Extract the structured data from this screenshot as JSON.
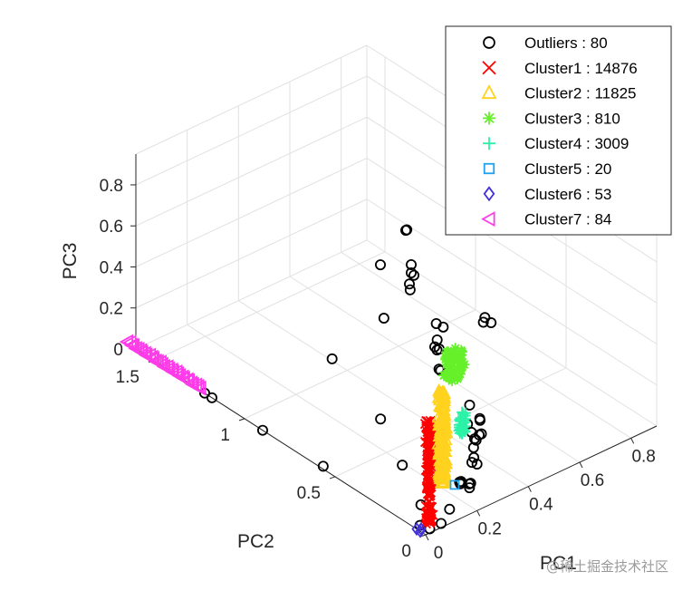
{
  "chart_data": {
    "type": "scatter3d",
    "xlabel": "PC1",
    "ylabel": "PC2",
    "zlabel": "PC3",
    "xlim": [
      0,
      0.9
    ],
    "ylim": [
      0,
      1.6
    ],
    "zlim": [
      0,
      0.95
    ],
    "x_ticks": [
      {
        "value": 0,
        "label": "0"
      },
      {
        "value": 0.2,
        "label": "0.2"
      },
      {
        "value": 0.4,
        "label": "0.4"
      },
      {
        "value": 0.6,
        "label": "0.6"
      },
      {
        "value": 0.8,
        "label": "0.8"
      }
    ],
    "y_ticks": [
      {
        "value": 0,
        "label": "0"
      },
      {
        "value": 0.5,
        "label": "0.5"
      },
      {
        "value": 1,
        "label": "1"
      },
      {
        "value": 1.5,
        "label": "1.5"
      }
    ],
    "z_ticks": [
      {
        "value": 0,
        "label": "0"
      },
      {
        "value": 0.2,
        "label": "0.2"
      },
      {
        "value": 0.4,
        "label": "0.4"
      },
      {
        "value": 0.6,
        "label": "0.6"
      },
      {
        "value": 0.8,
        "label": "0.8"
      }
    ],
    "grid": true,
    "legend_position": "top-right",
    "series": [
      {
        "name": "Outliers : 80",
        "marker": "circle",
        "color": "#000000",
        "points": [
          [
            0.03,
            0.02,
            0.0
          ],
          [
            0.06,
            0.0,
            0.02
          ],
          [
            0.1,
            0.01,
            0.06
          ],
          [
            0.08,
            0.14,
            0.02
          ],
          [
            0.16,
            0.04,
            0.14
          ],
          [
            0.17,
            0.05,
            0.12
          ],
          [
            0.18,
            0.06,
            0.12
          ],
          [
            0.19,
            0.08,
            0.1
          ],
          [
            0.22,
            0.07,
            0.06
          ],
          [
            0.24,
            0.1,
            0.05
          ],
          [
            0.26,
            0.12,
            0.03
          ],
          [
            0.3,
            0.17,
            0.08
          ],
          [
            0.32,
            0.17,
            0.06
          ],
          [
            0.35,
            0.23,
            0.04
          ],
          [
            0.37,
            0.26,
            0.06
          ],
          [
            0.38,
            0.26,
            0.09
          ],
          [
            0.39,
            0.3,
            0.1
          ],
          [
            0.42,
            0.3,
            0.07
          ],
          [
            0.45,
            0.33,
            0.04
          ],
          [
            0.48,
            0.38,
            0.06
          ],
          [
            0.5,
            0.41,
            0.04
          ],
          [
            0.51,
            0.48,
            0.06
          ],
          [
            0.6,
            0.8,
            0.11
          ],
          [
            0.63,
            0.83,
            0.06
          ],
          [
            0.66,
            0.86,
            0.03
          ],
          [
            0.68,
            0.9,
            0.04
          ],
          [
            0.66,
            1.0,
            0.31
          ],
          [
            0.71,
            1.11,
            0.44
          ],
          [
            0.72,
            1.13,
            0.42
          ],
          [
            0.72,
            1.1,
            0.27
          ],
          [
            0.72,
            1.1,
            0.23
          ],
          [
            0.72,
            1.11,
            0.17
          ],
          [
            0.73,
            1.12,
            0.13
          ],
          [
            0.55,
            1.01,
            0.16
          ],
          [
            0.6,
            1.1,
            0.34
          ],
          [
            0.32,
            0.97,
            0.12
          ],
          [
            0.29,
            0.66,
            0.02
          ],
          [
            0.17,
            0.37,
            0.03
          ],
          [
            0.0,
            0.9,
            0.0
          ],
          [
            0.0,
            1.18,
            0.0
          ],
          [
            0.0,
            1.22,
            0.0
          ],
          [
            0.01,
            0.58,
            0.0
          ],
          [
            0.02,
            0.06,
            0.0
          ],
          [
            0.76,
            0.98,
            0.01
          ],
          [
            0.86,
            0.9,
            0.02
          ],
          [
            0.88,
            0.92,
            0.02
          ],
          [
            0.89,
            0.9,
            0.0
          ],
          [
            0.56,
            0.72,
            0.07
          ],
          [
            0.62,
            0.82,
            0.2
          ],
          [
            0.58,
            0.74,
            0.04
          ],
          [
            0.41,
            0.35,
            0.1
          ],
          [
            0.36,
            0.24,
            0.12
          ]
        ]
      },
      {
        "name": "Cluster1 : 14876",
        "marker": "x",
        "color": "#ff0000",
        "points": "column from (0.05,0.05,0.00) to (0.05,0.05,0.50)"
      },
      {
        "name": "Cluster2 : 11825",
        "marker": "triangle-up",
        "color": "#ffd21f",
        "points": "column from (0.22,0.22,0.00) to (0.22,0.22,0.45)"
      },
      {
        "name": "Cluster3 : 810",
        "marker": "asterisk",
        "color": "#66f02b",
        "points": "blob around (0.62,0.72,0.02), rising to z 0.13"
      },
      {
        "name": "Cluster4 : 3009",
        "marker": "plus",
        "color": "#2bf2a6",
        "points": "column around (0.44,0.42,0.00) to z 0.10"
      },
      {
        "name": "Cluster5 : 20",
        "marker": "square",
        "color": "#1fa2ef",
        "points": [
          [
            0.24,
            0.18,
            0.0
          ]
        ]
      },
      {
        "name": "Cluster6 : 53",
        "marker": "diamond",
        "color": "#4231d9",
        "points": [
          [
            0.0,
            0.05,
            0.0
          ],
          [
            0.01,
            0.04,
            0.0
          ],
          [
            0.0,
            0.03,
            0.0
          ]
        ]
      },
      {
        "name": "Cluster7 : 84",
        "marker": "triangle-left",
        "color": "#ff3be9",
        "points": "line from (0.00,1.65,0.00) to (0.00,1.25,0.00)"
      }
    ]
  },
  "watermark": "@稀土掘金技术社区"
}
